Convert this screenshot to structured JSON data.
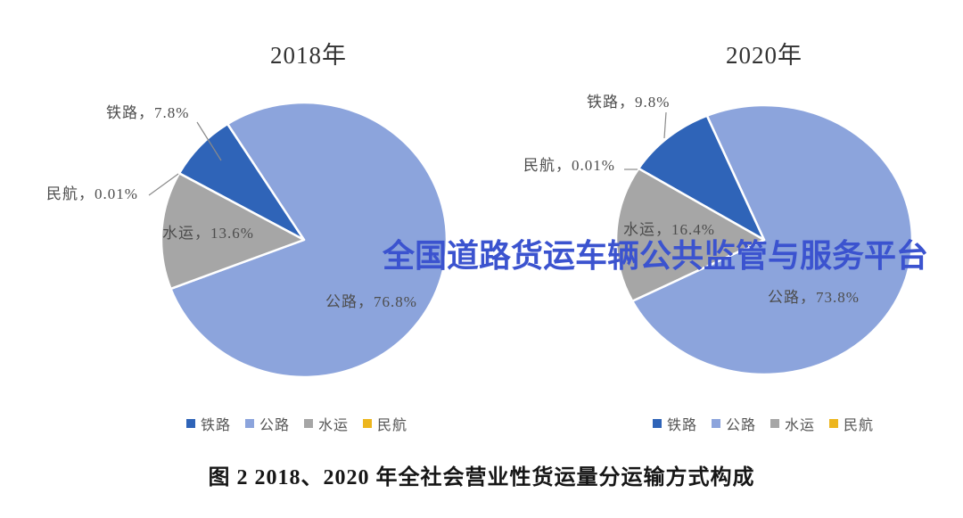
{
  "watermark": {
    "text": "全国道路货运车辆公共监管与服务平台",
    "color": "#3B53CF"
  },
  "caption": "图 2 2018、2020 年全社会营业性货运量分运输方式构成",
  "chart_data": [
    {
      "type": "pie",
      "id": "2018",
      "title": "2018年",
      "legend_position": "bottom",
      "start_angle_deg": 299,
      "colors": [
        "#2F64B8",
        "#8CA4DC",
        "#A6A6A6",
        "#EDB61E"
      ],
      "series": [
        {
          "key": "railway",
          "name": "铁路",
          "value": 7.8,
          "label": "铁路，7.8%"
        },
        {
          "key": "road",
          "name": "公路",
          "value": 76.8,
          "label": "公路，76.8%"
        },
        {
          "key": "water",
          "name": "水运",
          "value": 13.6,
          "label": "水运，13.6%"
        },
        {
          "key": "aviation",
          "name": "民航",
          "value": 0.01,
          "label": "民航，0.01%"
        }
      ]
    },
    {
      "type": "pie",
      "id": "2020",
      "title": "2020年",
      "legend_position": "bottom",
      "start_angle_deg": 302,
      "colors": [
        "#2F64B8",
        "#8CA4DC",
        "#A6A6A6",
        "#EDB61E"
      ],
      "series": [
        {
          "key": "railway",
          "name": "铁路",
          "value": 9.8,
          "label": "铁路，9.8%"
        },
        {
          "key": "road",
          "name": "公路",
          "value": 73.8,
          "label": "公路，73.8%"
        },
        {
          "key": "water",
          "name": "水运",
          "value": 16.4,
          "label": "水运，16.4%"
        },
        {
          "key": "aviation",
          "name": "民航",
          "value": 0.01,
          "label": "民航，0.01%"
        }
      ]
    }
  ]
}
